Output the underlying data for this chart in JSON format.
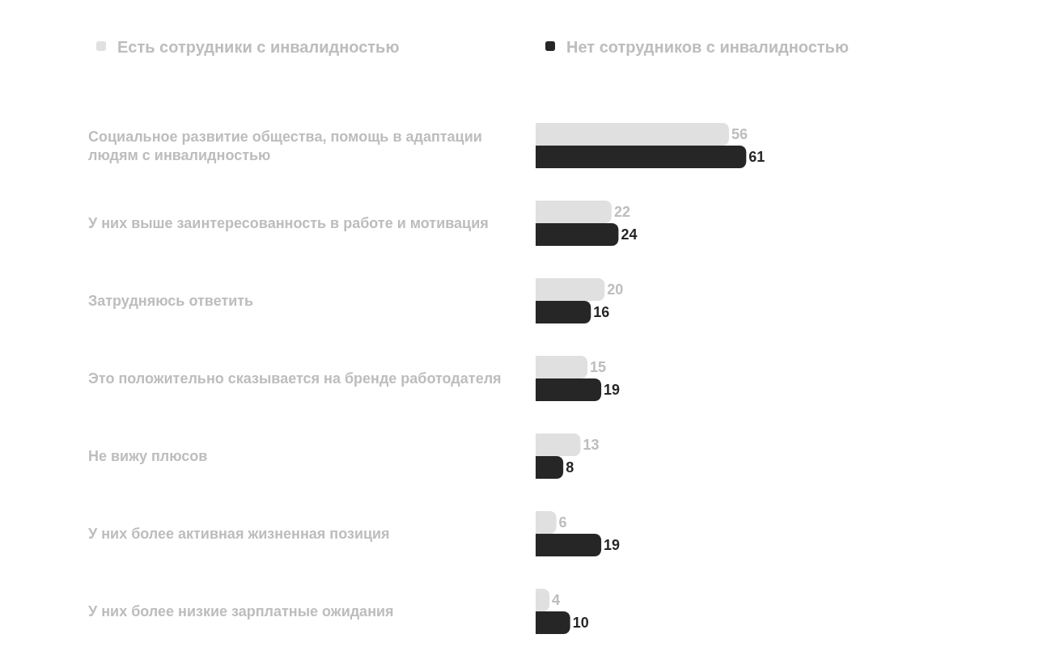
{
  "chart_data": {
    "type": "bar",
    "orientation": "horizontal",
    "categories": [
      "Социальное развитие общества, помощь в адаптации людям с инвалидностью",
      "У них выше заинтересованность в работе и мотивация",
      "Затрудняюсь ответить",
      "Это положительно сказывается на бренде работодателя",
      "Не вижу плюсов",
      "У них более активная жизненная позиция",
      "У них более низкие зарплатные ожидания"
    ],
    "series": [
      {
        "name": "Есть сотрудники с инвалидностью",
        "color": "#e0e0e0",
        "values": [
          56,
          22,
          20,
          15,
          13,
          6,
          4
        ]
      },
      {
        "name": "Нет сотрудников с инвалидностью",
        "color": "#262626",
        "values": [
          61,
          24,
          16,
          19,
          8,
          19,
          10
        ]
      }
    ],
    "data_labels": true,
    "legend": "top",
    "tick_labels": "y"
  }
}
